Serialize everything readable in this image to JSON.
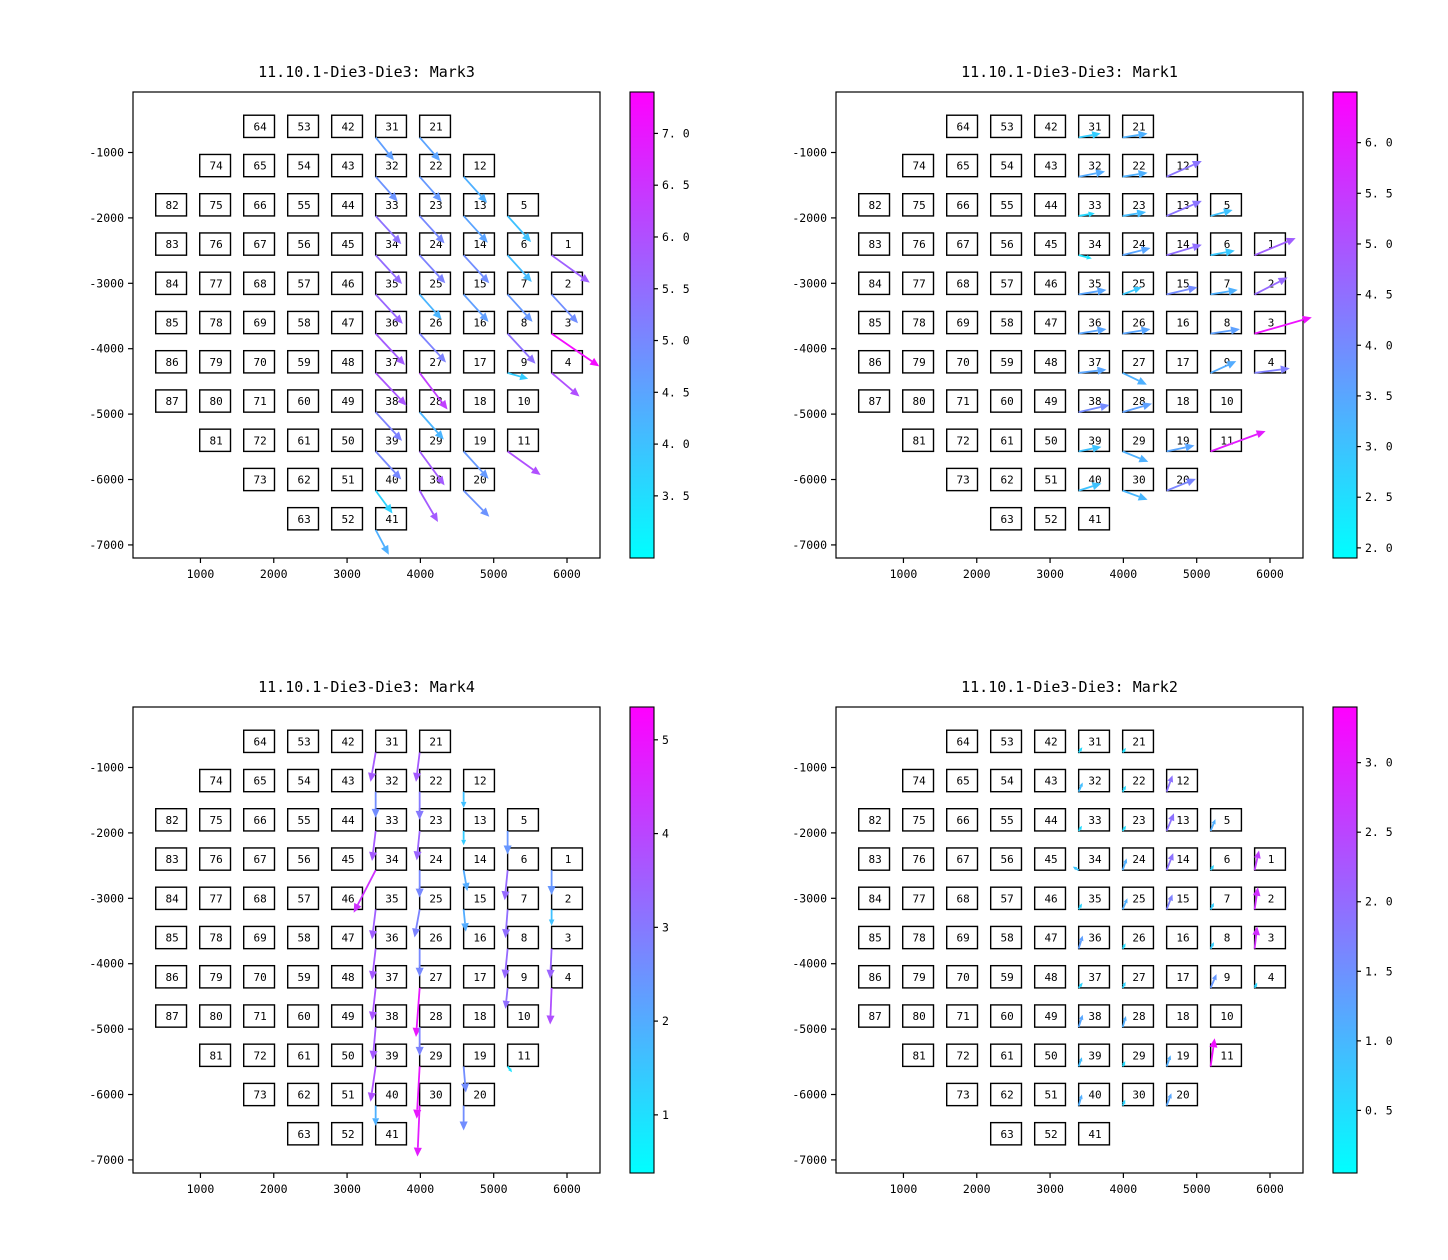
{
  "figure_title": "wafer mark displacement quiver figure",
  "colormap": {
    "name": "cool",
    "start": "#00ffff",
    "end": "#ff00ff"
  },
  "axes": {
    "xlim": [
      80,
      6450
    ],
    "ylim": [
      -7200,
      -75
    ],
    "x_tick_values": [
      1000,
      2000,
      3000,
      4000,
      5000,
      6000
    ],
    "x_tick_labels": [
      "1000",
      "2000",
      "3000",
      "4000",
      "5000",
      "6000"
    ],
    "y_tick_values": [
      -1000,
      -2000,
      -3000,
      -4000,
      -5000,
      -6000,
      -7000
    ],
    "y_tick_labels": [
      "-1000",
      "-2000",
      "-3000",
      "-4000",
      "-5000",
      "-6000",
      "-7000"
    ]
  },
  "die_size": [
    420,
    340
  ],
  "dies": [
    [
      64,
      1800,
      -600
    ],
    [
      53,
      2400,
      -600
    ],
    [
      42,
      3000,
      -600
    ],
    [
      31,
      3600,
      -600
    ],
    [
      21,
      4200,
      -600
    ],
    [
      74,
      1200,
      -1200
    ],
    [
      65,
      1800,
      -1200
    ],
    [
      54,
      2400,
      -1200
    ],
    [
      43,
      3000,
      -1200
    ],
    [
      32,
      3600,
      -1200
    ],
    [
      22,
      4200,
      -1200
    ],
    [
      12,
      4800,
      -1200
    ],
    [
      82,
      600,
      -1800
    ],
    [
      75,
      1200,
      -1800
    ],
    [
      66,
      1800,
      -1800
    ],
    [
      55,
      2400,
      -1800
    ],
    [
      44,
      3000,
      -1800
    ],
    [
      33,
      3600,
      -1800
    ],
    [
      23,
      4200,
      -1800
    ],
    [
      13,
      4800,
      -1800
    ],
    [
      5,
      5400,
      -1800
    ],
    [
      83,
      600,
      -2400
    ],
    [
      76,
      1200,
      -2400
    ],
    [
      67,
      1800,
      -2400
    ],
    [
      56,
      2400,
      -2400
    ],
    [
      45,
      3000,
      -2400
    ],
    [
      34,
      3600,
      -2400
    ],
    [
      24,
      4200,
      -2400
    ],
    [
      14,
      4800,
      -2400
    ],
    [
      6,
      5400,
      -2400
    ],
    [
      1,
      6000,
      -2400
    ],
    [
      84,
      600,
      -3000
    ],
    [
      77,
      1200,
      -3000
    ],
    [
      68,
      1800,
      -3000
    ],
    [
      57,
      2400,
      -3000
    ],
    [
      46,
      3000,
      -3000
    ],
    [
      35,
      3600,
      -3000
    ],
    [
      25,
      4200,
      -3000
    ],
    [
      15,
      4800,
      -3000
    ],
    [
      7,
      5400,
      -3000
    ],
    [
      2,
      6000,
      -3000
    ],
    [
      85,
      600,
      -3600
    ],
    [
      78,
      1200,
      -3600
    ],
    [
      69,
      1800,
      -3600
    ],
    [
      58,
      2400,
      -3600
    ],
    [
      47,
      3000,
      -3600
    ],
    [
      36,
      3600,
      -3600
    ],
    [
      26,
      4200,
      -3600
    ],
    [
      16,
      4800,
      -3600
    ],
    [
      8,
      5400,
      -3600
    ],
    [
      3,
      6000,
      -3600
    ],
    [
      86,
      600,
      -4200
    ],
    [
      79,
      1200,
      -4200
    ],
    [
      70,
      1800,
      -4200
    ],
    [
      59,
      2400,
      -4200
    ],
    [
      48,
      3000,
      -4200
    ],
    [
      37,
      3600,
      -4200
    ],
    [
      27,
      4200,
      -4200
    ],
    [
      17,
      4800,
      -4200
    ],
    [
      9,
      5400,
      -4200
    ],
    [
      4,
      6000,
      -4200
    ],
    [
      87,
      600,
      -4800
    ],
    [
      80,
      1200,
      -4800
    ],
    [
      71,
      1800,
      -4800
    ],
    [
      60,
      2400,
      -4800
    ],
    [
      49,
      3000,
      -4800
    ],
    [
      38,
      3600,
      -4800
    ],
    [
      28,
      4200,
      -4800
    ],
    [
      18,
      4800,
      -4800
    ],
    [
      10,
      5400,
      -4800
    ],
    [
      81,
      1200,
      -5400
    ],
    [
      72,
      1800,
      -5400
    ],
    [
      61,
      2400,
      -5400
    ],
    [
      50,
      3000,
      -5400
    ],
    [
      39,
      3600,
      -5400
    ],
    [
      29,
      4200,
      -5400
    ],
    [
      19,
      4800,
      -5400
    ],
    [
      11,
      5400,
      -5400
    ],
    [
      73,
      1800,
      -6000
    ],
    [
      62,
      2400,
      -6000
    ],
    [
      51,
      3000,
      -6000
    ],
    [
      40,
      3600,
      -6000
    ],
    [
      30,
      4200,
      -6000
    ],
    [
      20,
      4800,
      -6000
    ],
    [
      63,
      2400,
      -6600
    ],
    [
      52,
      3000,
      -6600
    ],
    [
      41,
      3600,
      -6600
    ]
  ],
  "chart_data": [
    {
      "type": "quiver",
      "id": "mark3",
      "position": "top-left",
      "title": "11.10.1-Die3-Die3: Mark3",
      "colorbar": {
        "vmin": 2.9,
        "vmax": 7.4,
        "tick_values": [
          3.5,
          4.0,
          4.5,
          5.0,
          5.5,
          6.0,
          6.5,
          7.0
        ],
        "tick_labels": [
          "3. 5",
          "4. 0",
          "4. 5",
          "5. 0",
          "5. 5",
          "6. 0",
          "6. 5",
          "7. 0"
        ]
      },
      "arrows": [
        [
          31,
          250,
          -350,
          4.6
        ],
        [
          21,
          280,
          -360,
          4.5
        ],
        [
          32,
          300,
          -380,
          4.8
        ],
        [
          22,
          300,
          -380,
          4.7
        ],
        [
          12,
          320,
          -400,
          4.3
        ],
        [
          33,
          350,
          -430,
          5.4
        ],
        [
          23,
          340,
          -420,
          5.0
        ],
        [
          13,
          330,
          -410,
          4.5
        ],
        [
          5,
          320,
          -400,
          4.0
        ],
        [
          34,
          360,
          -440,
          5.5
        ],
        [
          24,
          350,
          -430,
          5.1
        ],
        [
          14,
          350,
          -430,
          4.9
        ],
        [
          6,
          330,
          -410,
          4.1
        ],
        [
          1,
          520,
          -420,
          5.7
        ],
        [
          35,
          370,
          -450,
          5.6
        ],
        [
          25,
          300,
          -380,
          4.2
        ],
        [
          15,
          340,
          -420,
          4.6
        ],
        [
          7,
          340,
          -420,
          4.7
        ],
        [
          2,
          360,
          -440,
          4.9
        ],
        [
          36,
          400,
          -480,
          5.8
        ],
        [
          26,
          360,
          -440,
          5.1
        ],
        [
          8,
          380,
          -460,
          5.4
        ],
        [
          3,
          650,
          -500,
          7.2
        ],
        [
          37,
          420,
          -500,
          5.9
        ],
        [
          27,
          380,
          -560,
          6.3
        ],
        [
          9,
          280,
          -90,
          3.8
        ],
        [
          4,
          380,
          -360,
          6.0
        ],
        [
          38,
          360,
          -440,
          5.1
        ],
        [
          28,
          330,
          -420,
          4.2
        ],
        [
          39,
          350,
          -430,
          5.0
        ],
        [
          29,
          340,
          -520,
          5.8
        ],
        [
          19,
          340,
          -420,
          4.7
        ],
        [
          11,
          450,
          -360,
          6.0
        ],
        [
          40,
          230,
          -350,
          3.7
        ],
        [
          30,
          250,
          -480,
          5.8
        ],
        [
          20,
          350,
          -400,
          4.8
        ],
        [
          41,
          180,
          -380,
          4.3
        ]
      ]
    },
    {
      "type": "quiver",
      "id": "mark1",
      "position": "top-right",
      "title": "11.10.1-Die3-Die3: Mark1",
      "colorbar": {
        "vmin": 1.9,
        "vmax": 6.5,
        "tick_values": [
          2.0,
          2.5,
          3.0,
          3.5,
          4.0,
          4.5,
          5.0,
          5.5,
          6.0
        ],
        "tick_labels": [
          "2. 0",
          "2. 5",
          "3. 0",
          "3. 5",
          "4. 0",
          "4. 5",
          "5. 0",
          "5. 5",
          "6. 0"
        ]
      },
      "arrows": [
        [
          31,
          300,
          60,
          2.8
        ],
        [
          21,
          340,
          60,
          3.3
        ],
        [
          32,
          360,
          80,
          3.4
        ],
        [
          22,
          340,
          60,
          3.3
        ],
        [
          12,
          480,
          240,
          4.4
        ],
        [
          33,
          220,
          40,
          2.6
        ],
        [
          23,
          320,
          60,
          3.1
        ],
        [
          13,
          480,
          230,
          4.4
        ],
        [
          5,
          300,
          90,
          3.0
        ],
        [
          34,
          180,
          -50,
          2.4
        ],
        [
          24,
          380,
          110,
          3.5
        ],
        [
          14,
          480,
          160,
          4.5
        ],
        [
          6,
          330,
          70,
          2.9
        ],
        [
          1,
          560,
          260,
          4.8
        ],
        [
          35,
          380,
          70,
          3.5
        ],
        [
          25,
          260,
          110,
          2.9
        ],
        [
          15,
          420,
          110,
          4.0
        ],
        [
          7,
          370,
          70,
          3.3
        ],
        [
          2,
          450,
          260,
          4.6
        ],
        [
          36,
          380,
          70,
          3.5
        ],
        [
          26,
          380,
          70,
          3.5
        ],
        [
          8,
          400,
          70,
          3.6
        ],
        [
          3,
          780,
          250,
          6.2
        ],
        [
          37,
          380,
          50,
          3.5
        ],
        [
          27,
          330,
          -180,
          3.3
        ],
        [
          9,
          350,
          180,
          3.4
        ],
        [
          4,
          480,
          70,
          4.2
        ],
        [
          38,
          420,
          110,
          4.0
        ],
        [
          28,
          400,
          130,
          3.6
        ],
        [
          39,
          310,
          70,
          3.0
        ],
        [
          29,
          350,
          -160,
          3.3
        ],
        [
          19,
          380,
          90,
          3.5
        ],
        [
          11,
          750,
          310,
          6.0
        ],
        [
          40,
          310,
          110,
          3.0
        ],
        [
          30,
          340,
          -140,
          3.2
        ],
        [
          20,
          400,
          180,
          4.1
        ]
      ]
    },
    {
      "type": "quiver",
      "id": "mark4",
      "position": "bottom-left",
      "title": "11.10.1-Die3-Die3: Mark4",
      "colorbar": {
        "vmin": 0.38,
        "vmax": 5.35,
        "tick_values": [
          1,
          2,
          3,
          4,
          5
        ],
        "tick_labels": [
          "1",
          "2",
          "3",
          "4",
          "5"
        ]
      },
      "arrows": [
        [
          31,
          -70,
          -450,
          3.6
        ],
        [
          21,
          -50,
          -450,
          3.6
        ],
        [
          32,
          0,
          -400,
          2.6
        ],
        [
          22,
          0,
          -430,
          3.0
        ],
        [
          12,
          0,
          -250,
          1.6
        ],
        [
          33,
          -50,
          -460,
          3.6
        ],
        [
          23,
          -40,
          -450,
          3.4
        ],
        [
          13,
          0,
          -220,
          1.4
        ],
        [
          5,
          0,
          -360,
          2.4
        ],
        [
          34,
          -300,
          -650,
          4.4
        ],
        [
          24,
          0,
          -420,
          2.7
        ],
        [
          14,
          50,
          -320,
          2.0
        ],
        [
          6,
          -40,
          -460,
          3.3
        ],
        [
          1,
          0,
          -380,
          2.4
        ],
        [
          35,
          -50,
          -460,
          3.5
        ],
        [
          25,
          -70,
          -430,
          2.8
        ],
        [
          15,
          30,
          -340,
          2.0
        ],
        [
          7,
          -30,
          -440,
          3.2
        ],
        [
          2,
          0,
          -250,
          1.6
        ],
        [
          36,
          -50,
          -480,
          3.6
        ],
        [
          26,
          0,
          -430,
          2.7
        ],
        [
          8,
          -40,
          -460,
          3.3
        ],
        [
          3,
          -20,
          -460,
          3.4
        ],
        [
          37,
          -50,
          -500,
          3.7
        ],
        [
          27,
          -50,
          -750,
          4.9
        ],
        [
          9,
          -30,
          -320,
          3.2
        ],
        [
          4,
          -20,
          -560,
          3.8
        ],
        [
          38,
          -40,
          -500,
          3.6
        ],
        [
          28,
          0,
          -440,
          2.8
        ],
        [
          39,
          -70,
          -540,
          3.8
        ],
        [
          29,
          -40,
          -800,
          4.9
        ],
        [
          19,
          30,
          -400,
          2.6
        ],
        [
          11,
          60,
          -90,
          0.9
        ],
        [
          40,
          0,
          -310,
          1.9
        ],
        [
          30,
          -30,
          -780,
          4.8
        ],
        [
          20,
          0,
          -380,
          2.6
        ]
      ]
    },
    {
      "type": "quiver",
      "id": "mark2",
      "position": "bottom-right",
      "title": "11.10.1-Die3-Die3: Mark2",
      "colorbar": {
        "vmin": 0.05,
        "vmax": 3.4,
        "tick_values": [
          0.5,
          1.0,
          1.5,
          2.0,
          2.5,
          3.0
        ],
        "tick_labels": [
          "0. 5",
          "1. 0",
          "1. 5",
          "2. 0",
          "2. 5",
          "3. 0"
        ]
      },
      "arrows": [
        [
          31,
          50,
          80,
          0.5
        ],
        [
          21,
          45,
          70,
          0.45
        ],
        [
          32,
          55,
          140,
          0.9
        ],
        [
          22,
          45,
          90,
          0.55
        ],
        [
          12,
          80,
          250,
          1.9
        ],
        [
          33,
          45,
          80,
          0.5
        ],
        [
          23,
          45,
          80,
          0.5
        ],
        [
          13,
          100,
          270,
          1.9
        ],
        [
          5,
          65,
          180,
          1.1
        ],
        [
          34,
          -80,
          55,
          0.8
        ],
        [
          24,
          55,
          180,
          1.1
        ],
        [
          14,
          90,
          260,
          1.9
        ],
        [
          6,
          45,
          80,
          0.6
        ],
        [
          1,
          60,
          300,
          2.6
        ],
        [
          35,
          45,
          90,
          0.6
        ],
        [
          25,
          65,
          170,
          1.1
        ],
        [
          15,
          80,
          230,
          1.7
        ],
        [
          7,
          45,
          100,
          0.7
        ],
        [
          2,
          45,
          340,
          2.8
        ],
        [
          36,
          55,
          200,
          1.3
        ],
        [
          26,
          40,
          80,
          0.5
        ],
        [
          8,
          45,
          100,
          0.7
        ],
        [
          3,
          35,
          340,
          2.8
        ],
        [
          37,
          55,
          80,
          0.6
        ],
        [
          27,
          40,
          90,
          0.6
        ],
        [
          9,
          80,
          210,
          1.4
        ],
        [
          4,
          35,
          80,
          0.6
        ],
        [
          38,
          55,
          190,
          1.2
        ],
        [
          28,
          45,
          170,
          1.1
        ],
        [
          39,
          45,
          140,
          0.9
        ],
        [
          29,
          35,
          80,
          0.5
        ],
        [
          19,
          55,
          170,
          1.1
        ],
        [
          11,
          55,
          430,
          3.2
        ],
        [
          40,
          45,
          170,
          1.1
        ],
        [
          30,
          35,
          90,
          0.6
        ],
        [
          20,
          65,
          190,
          1.2
        ]
      ]
    }
  ]
}
